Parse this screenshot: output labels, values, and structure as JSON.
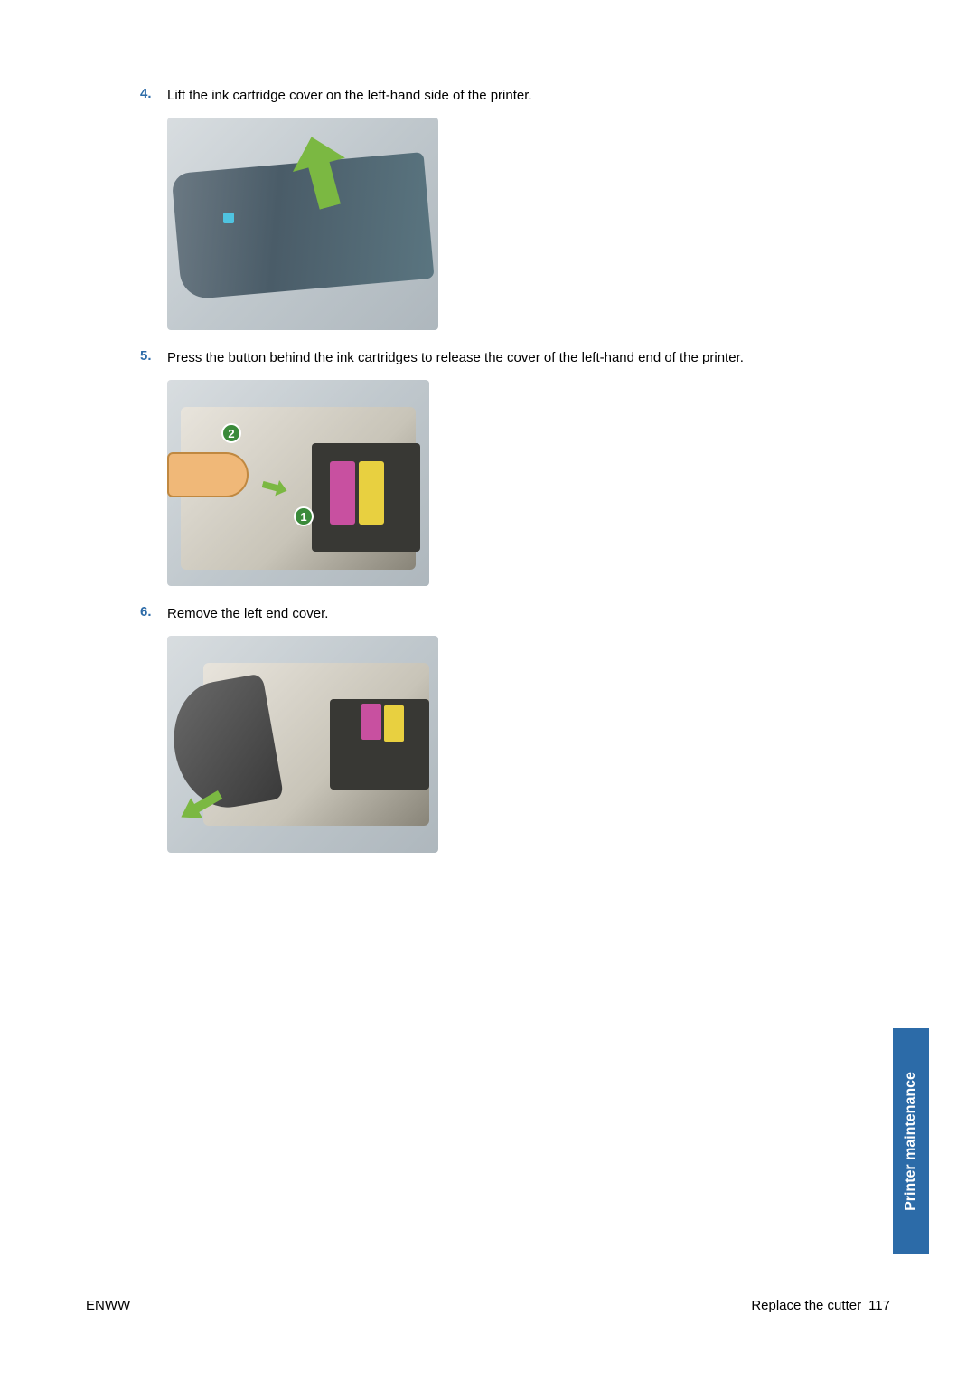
{
  "steps": [
    {
      "number": "4.",
      "text": "Lift the ink cartridge cover on the left-hand side of the printer."
    },
    {
      "number": "5.",
      "text": "Press the button behind the ink cartridges to release the cover of the left-hand end of the printer."
    },
    {
      "number": "6.",
      "text": "Remove the left end cover."
    }
  ],
  "badges": {
    "one": "1",
    "two": "2"
  },
  "footer": {
    "left": "ENWW",
    "section": "Replace the cutter",
    "page": "117"
  },
  "sideTab": "Printer maintenance",
  "colors": {
    "stepNumber": "#2c6ba8",
    "bodyText": "#000000",
    "tabBackground": "#2c6ba8",
    "tabText": "#ffffff",
    "arrowGreen": "#7bb842",
    "badgeGreen": "#3a8a3a",
    "cartridgeMagenta": "#c850a0",
    "cartridgeYellow": "#e8d040"
  }
}
